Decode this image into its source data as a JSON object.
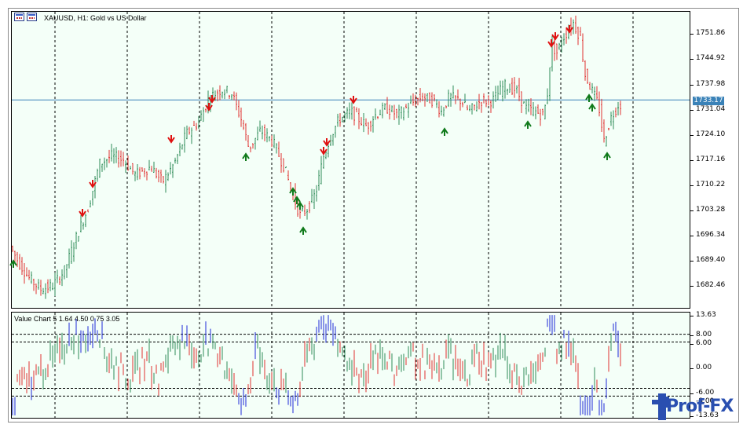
{
  "window": {
    "title": "XAUUSD, H1:  Gold vs US Dollar"
  },
  "indicator": {
    "title": "Value Chart 5 1.64 4.50 0.75 3.05"
  },
  "price_axis": {
    "labels": [
      "1751.86",
      "1744.92",
      "1737.98",
      "1731.04",
      "1724.10",
      "1717.16",
      "1710.22",
      "1703.28",
      "1696.34",
      "1689.40",
      "1682.46"
    ],
    "current_price": "1733.17"
  },
  "indicator_axis": {
    "labels": [
      "13.63",
      "8.00",
      "6.00",
      "0.00",
      "-6.00",
      "-8.00",
      "-13.63"
    ]
  },
  "watermark": {
    "text": "Prof-FX"
  },
  "colors": {
    "bull": "#2e8b57",
    "bear": "#e03030",
    "extreme": "#1e2ad8",
    "price_line": "#3a82b8",
    "background": "#f4fff8"
  },
  "chart_data": {
    "type": "ohlc",
    "price_range": [
      1677,
      1757
    ],
    "indicator_range": [
      -13.63,
      13.63
    ],
    "indicator_levels": [
      8,
      6,
      -6,
      -8
    ],
    "current_price": 1733.17
  }
}
